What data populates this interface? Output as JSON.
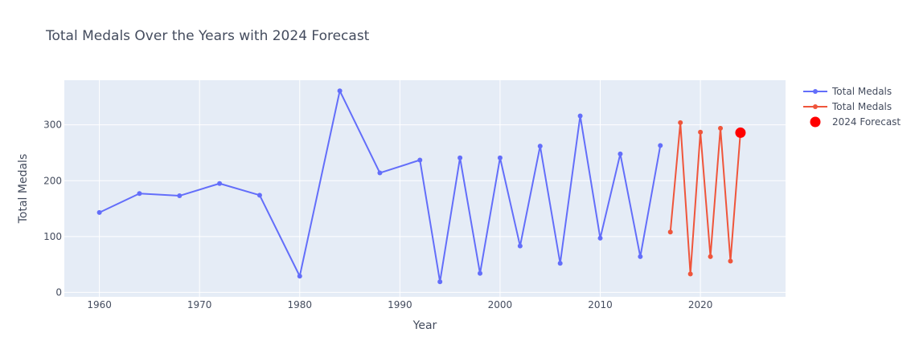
{
  "chart_data": {
    "type": "line",
    "title": "Total Medals Over the Years with 2024 Forecast",
    "xlabel": "Year",
    "ylabel": "Total Medals",
    "xlim": [
      1956.5,
      2028.5
    ],
    "ylim": [
      -8,
      380
    ],
    "xticks": [
      1960,
      1970,
      1980,
      1990,
      2000,
      2010,
      2020
    ],
    "yticks": [
      0,
      100,
      200,
      300
    ],
    "grid": true,
    "legend_position": "top-right",
    "series": [
      {
        "name": "Total Medals",
        "color": "#636efa",
        "mode": "lines+markers",
        "x": [
          1960,
          1964,
          1968,
          1972,
          1976,
          1980,
          1984,
          1988,
          1992,
          1994,
          1996,
          1998,
          2000,
          2002,
          2004,
          2006,
          2008,
          2010,
          2012,
          2014,
          2016
        ],
        "y": [
          143,
          177,
          173,
          195,
          174,
          29,
          361,
          214,
          237,
          19,
          241,
          34,
          241,
          83,
          262,
          52,
          316,
          97,
          248,
          64,
          263
        ]
      },
      {
        "name": "Total Medals",
        "color": "#ef553b",
        "mode": "lines+markers",
        "x": [
          2017,
          2018,
          2019,
          2020,
          2021,
          2022,
          2023,
          2024
        ],
        "y": [
          108,
          304,
          33,
          287,
          64,
          294,
          56,
          287
        ]
      },
      {
        "name": "2024 Forecast",
        "color": "#ff0000",
        "mode": "markers",
        "x": [
          2024
        ],
        "y": [
          286
        ]
      }
    ]
  }
}
